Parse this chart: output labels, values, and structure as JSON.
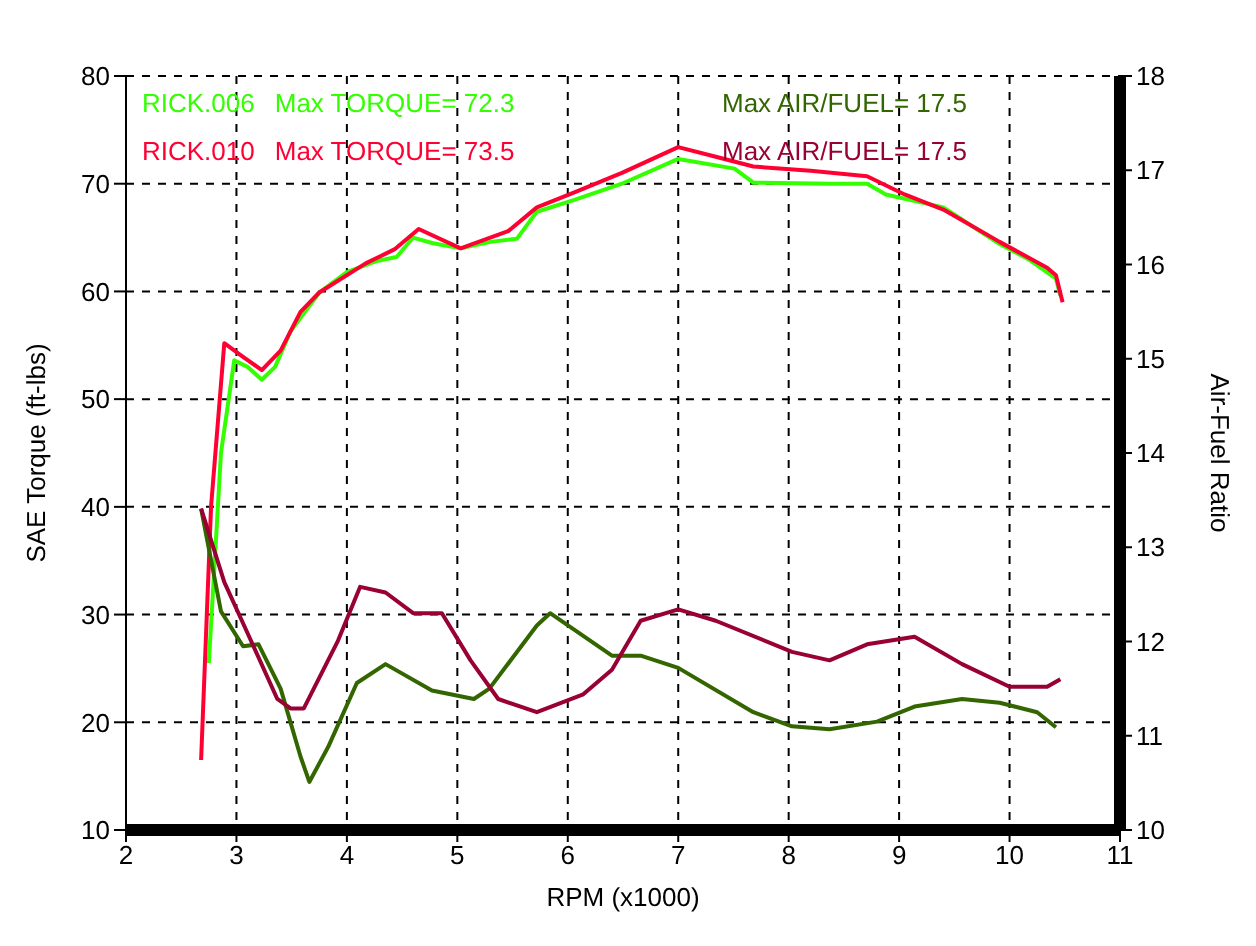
{
  "chart_data": {
    "type": "line",
    "xlabel": "RPM (x1000)",
    "ylabel": "SAE Torque (ft-lbs)",
    "y2label": "Air-Fuel Ratio",
    "xlim": [
      2,
      11
    ],
    "xticks": [
      2,
      3,
      4,
      5,
      6,
      7,
      8,
      9,
      10,
      11
    ],
    "ylim": [
      10,
      80
    ],
    "yticks": [
      10,
      20,
      30,
      40,
      50,
      60,
      70,
      80
    ],
    "y2lim": [
      10,
      18
    ],
    "y2ticks": [
      10,
      11,
      12,
      13,
      14,
      15,
      16,
      17,
      18
    ],
    "grid": true,
    "line_style": "solid",
    "marker": "none",
    "annotations": [
      "Max TORQUE= 72.3",
      "Max TORQUE= 73.5",
      "Max AIR/FUEL= 17.5",
      "Max AIR/FUEL= 17.5"
    ],
    "series": [
      {
        "name": "RICK.006",
        "color": "#33ff00",
        "x": [
          2.75,
          2.86,
          2.98,
          3.1,
          3.23,
          3.35,
          3.49,
          3.75,
          4.0,
          4.26,
          4.45,
          4.6,
          4.77,
          5.03,
          5.3,
          5.54,
          5.72,
          6.06,
          6.49,
          7.0,
          7.51,
          7.68,
          8.37,
          8.71,
          8.88,
          9.4,
          9.91,
          10.17,
          10.42,
          10.46
        ],
        "values": [
          25.5,
          45,
          53.6,
          53,
          51.8,
          53,
          56.3,
          59.9,
          61.8,
          62.8,
          63.2,
          65,
          64.5,
          64,
          64.6,
          64.9,
          67.4,
          68.5,
          70,
          72.3,
          71.4,
          70.1,
          70,
          70,
          69,
          67.8,
          64.4,
          63,
          61.2,
          59.6
        ]
      },
      {
        "name": "RICK.010",
        "color": "#ff0033",
        "x": [
          2.68,
          2.77,
          2.89,
          3.05,
          3.23,
          3.4,
          3.58,
          3.75,
          4.17,
          4.43,
          4.65,
          5.03,
          5.46,
          5.72,
          6.06,
          6.49,
          7.0,
          7.34,
          7.68,
          8.2,
          8.71,
          9.05,
          9.4,
          9.91,
          10.34,
          10.42,
          10.48
        ],
        "values": [
          16.5,
          40,
          55.2,
          54,
          52.7,
          54.5,
          58.1,
          59.9,
          62.6,
          63.9,
          65.8,
          64,
          65.6,
          67.8,
          69.2,
          71,
          73.4,
          72.5,
          71.6,
          71.2,
          70.7,
          69,
          67.6,
          64.6,
          62.2,
          61.5,
          59
        ]
      },
      {
        "color": "#336600",
        "axis": "y2",
        "x": [
          2.68,
          2.86,
          3.06,
          3.2,
          3.4,
          3.58,
          3.66,
          3.83,
          4.09,
          4.35,
          4.77,
          5.15,
          5.29,
          5.72,
          5.84,
          6.4,
          6.66,
          7.0,
          7.68,
          8.03,
          8.37,
          8.8,
          9.14,
          9.57,
          9.91,
          10.25,
          10.42
        ],
        "values": [
          13.41,
          12.32,
          11.95,
          11.97,
          11.5,
          10.78,
          10.51,
          10.88,
          11.56,
          11.76,
          11.48,
          11.39,
          11.5,
          12.17,
          12.3,
          11.85,
          11.85,
          11.72,
          11.25,
          11.1,
          11.07,
          11.15,
          11.31,
          11.39,
          11.35,
          11.25,
          11.09
        ]
      },
      {
        "color": "#990033",
        "axis": "y2",
        "x": [
          2.68,
          2.89,
          3.1,
          3.37,
          3.49,
          3.61,
          3.92,
          4.12,
          4.35,
          4.6,
          4.86,
          5.12,
          5.37,
          5.72,
          6.14,
          6.4,
          6.66,
          7.0,
          7.34,
          8.03,
          8.37,
          8.71,
          9.14,
          9.57,
          10.0,
          10.34,
          10.46
        ],
        "values": [
          13.41,
          12.63,
          12.09,
          11.39,
          11.29,
          11.29,
          12.01,
          12.58,
          12.52,
          12.3,
          12.3,
          11.8,
          11.39,
          11.25,
          11.44,
          11.7,
          12.22,
          12.34,
          12.22,
          11.89,
          11.8,
          11.97,
          12.05,
          11.76,
          11.52,
          11.52,
          11.6
        ]
      }
    ]
  }
}
